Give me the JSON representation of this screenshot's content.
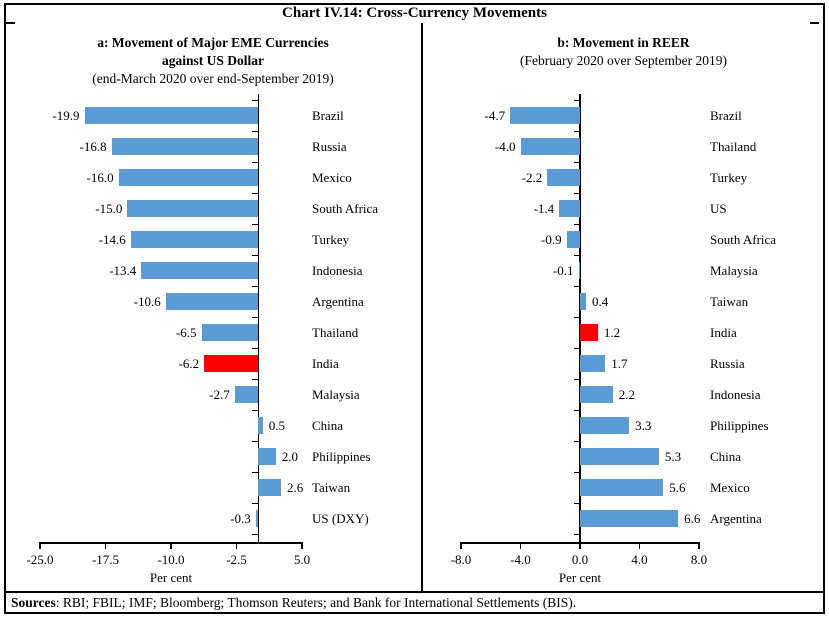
{
  "page": {
    "title": "Chart IV.14: Cross-Currency Movements",
    "sources_label": "Sources",
    "sources_text": ": RBI; FBIL; IMF; Bloomberg; Thomson Reuters; and Bank for International Settlements (BIS)."
  },
  "colors": {
    "bar": "#5B9BD5",
    "highlight": "#FF0000",
    "axis": "#000000"
  },
  "chart_data": [
    {
      "type": "bar",
      "orientation": "horizontal",
      "title_lines": [
        "a: Movement of Major EME Currencies",
        "against US Dollar"
      ],
      "subtitle": "(end-March 2020 over end-September 2019)",
      "categories": [
        "Brazil",
        "Russia",
        "Mexico",
        "South Africa",
        "Turkey",
        "Indonesia",
        "Argentina",
        "Thailand",
        "India",
        "Malaysia",
        "China",
        "Philippines",
        "Taiwan",
        "US (DXY)"
      ],
      "values": [
        -19.9,
        -16.8,
        -16.0,
        -15.0,
        -14.6,
        -13.4,
        -10.6,
        -6.5,
        -6.2,
        -2.7,
        0.5,
        2.0,
        2.6,
        -0.3
      ],
      "highlight_category": "India",
      "xlabel": "Per cent",
      "xlim": [
        -25.0,
        5.0
      ],
      "xticks": [
        -25.0,
        -17.5,
        -10.0,
        -2.5,
        5.0
      ],
      "grid": false,
      "legend": "none"
    },
    {
      "type": "bar",
      "orientation": "horizontal",
      "title_lines": [
        "b: Movement in REER"
      ],
      "subtitle": "(February 2020 over September 2019)",
      "categories": [
        "Brazil",
        "Thailand",
        "Turkey",
        "US",
        "South Africa",
        "Malaysia",
        "Taiwan",
        "India",
        "Russia",
        "Indonesia",
        "Philippines",
        "China",
        "Mexico",
        "Argentina"
      ],
      "values": [
        -4.7,
        -4.0,
        -2.2,
        -1.4,
        -0.9,
        -0.1,
        0.4,
        1.2,
        1.7,
        2.2,
        3.3,
        5.3,
        5.6,
        6.6
      ],
      "highlight_category": "India",
      "xlabel": "Per cent",
      "xlim": [
        -8.0,
        8.0
      ],
      "xticks": [
        -8.0,
        -4.0,
        0.0,
        4.0,
        8.0
      ],
      "grid": false,
      "legend": "none"
    }
  ]
}
